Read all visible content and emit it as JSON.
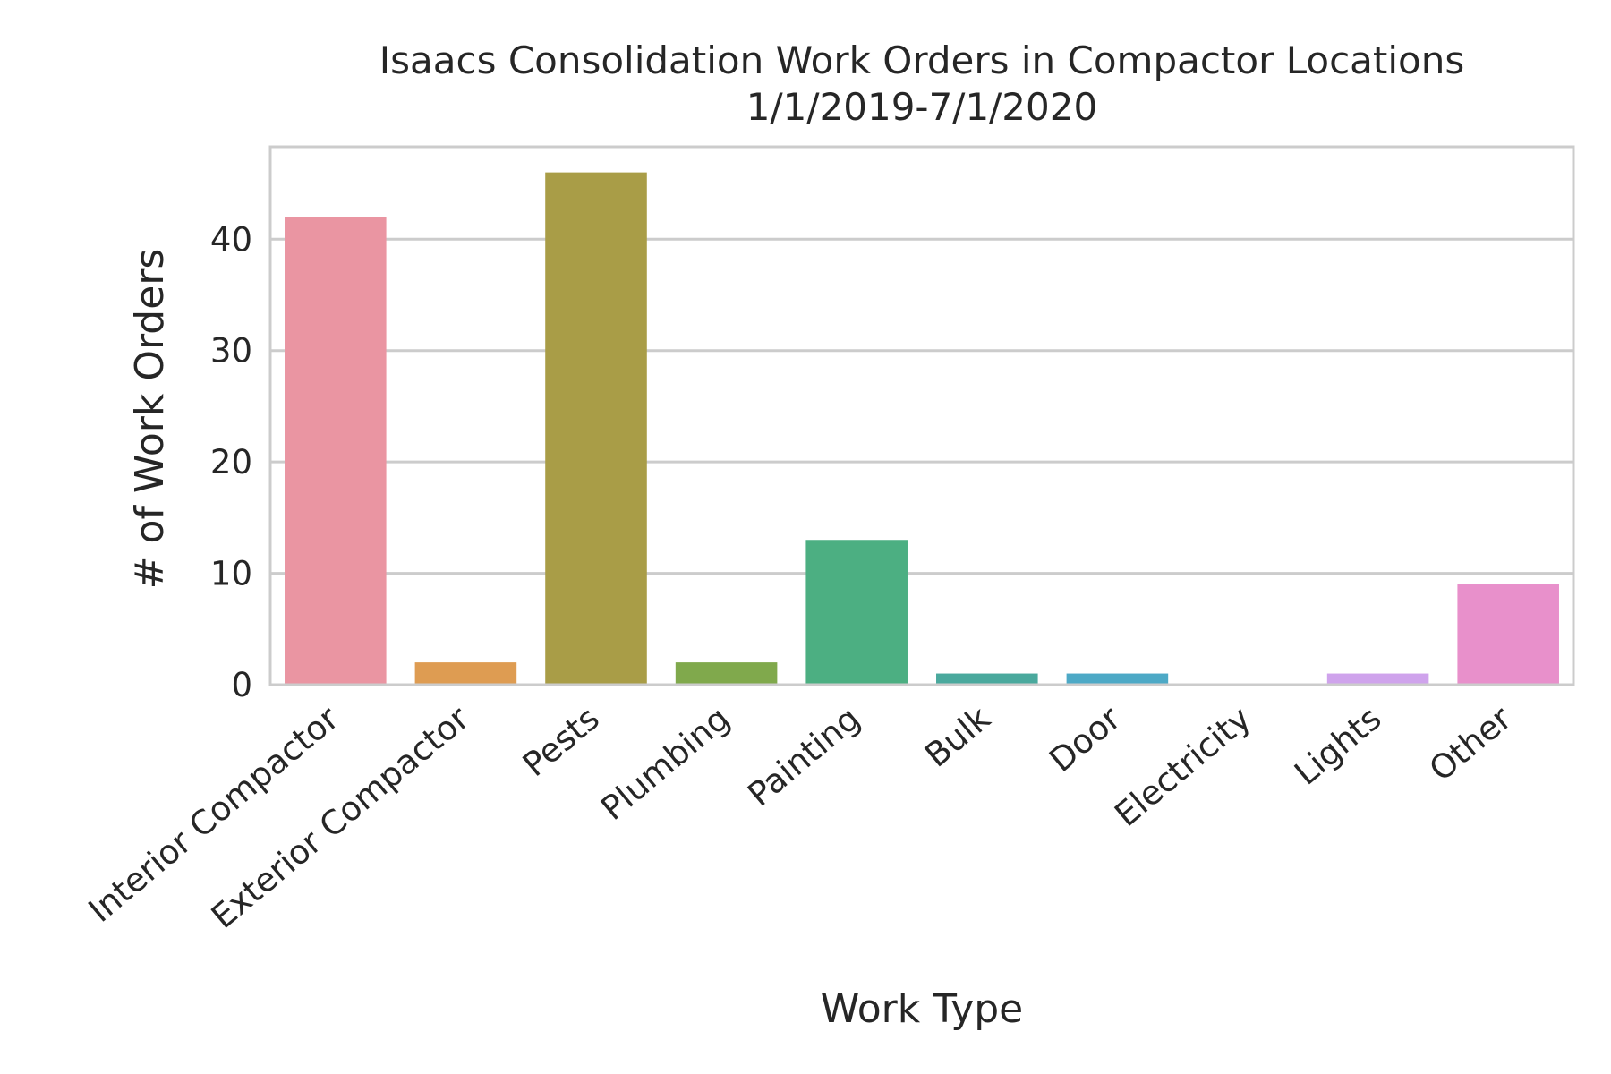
{
  "chart_data": {
    "type": "bar",
    "title": "Isaacs Consolidation Work Orders in Compactor Locations",
    "subtitle": "1/1/2019-7/1/2020",
    "xlabel": "Work Type",
    "ylabel": "# of Work Orders",
    "categories": [
      "Interior Compactor",
      "Exterior Compactor",
      "Pests",
      "Plumbing",
      "Painting",
      "Bulk",
      "Door",
      "Electricity",
      "Lights",
      "Other"
    ],
    "values": [
      42,
      2,
      46,
      2,
      13,
      1,
      1,
      0,
      1,
      9
    ],
    "colors": [
      "#ea95a2",
      "#de9c52",
      "#a99d47",
      "#80a94c",
      "#4caf82",
      "#4aa99d",
      "#4da9c6",
      "#8fa7e5",
      "#cfa3ec",
      "#e890cb"
    ],
    "ylim": [
      0,
      48.3
    ],
    "yticks": [
      0,
      10,
      20,
      30,
      40
    ],
    "grid": true,
    "legend": "none"
  }
}
